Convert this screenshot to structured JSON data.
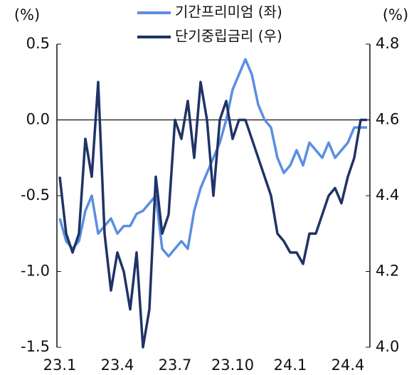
{
  "chart_data": {
    "type": "line",
    "y_unit": "(%)",
    "y2_unit": "(%)",
    "categories": [
      "23.1",
      null,
      null,
      null,
      null,
      null,
      null,
      null,
      null,
      "23.4",
      null,
      null,
      null,
      null,
      null,
      null,
      null,
      null,
      "23.7",
      null,
      null,
      null,
      null,
      null,
      null,
      null,
      null,
      "23.10",
      null,
      null,
      null,
      null,
      null,
      null,
      null,
      null,
      "24.1",
      null,
      null,
      null,
      null,
      null,
      null,
      null,
      null,
      "24.4",
      null,
      null,
      null
    ],
    "series": [
      {
        "name": "기간프리미엄 (좌)",
        "color": "#5b8ee0",
        "values": [
          -0.65,
          -0.8,
          -0.85,
          -0.8,
          -0.6,
          -0.5,
          -0.75,
          -0.7,
          -0.65,
          -0.75,
          -0.7,
          -0.7,
          -0.62,
          -0.6,
          -0.55,
          -0.5,
          -0.85,
          -0.9,
          -0.85,
          -0.8,
          -0.85,
          -0.6,
          -0.45,
          -0.35,
          -0.25,
          -0.15,
          0.0,
          0.2,
          0.3,
          0.4,
          0.3,
          0.1,
          0.0,
          -0.05,
          -0.25,
          -0.35,
          -0.3,
          -0.2,
          -0.3,
          -0.15,
          -0.2,
          -0.25,
          -0.15,
          -0.25,
          -0.2,
          -0.15,
          -0.05,
          -0.05,
          -0.05
        ]
      },
      {
        "name": "단기중립금리 (우)",
        "color": "#1f3366",
        "axis": "y2",
        "values": [
          4.45,
          4.3,
          4.25,
          4.3,
          4.55,
          4.45,
          4.7,
          4.3,
          4.15,
          4.25,
          4.2,
          4.1,
          4.25,
          4.0,
          4.1,
          4.45,
          4.3,
          4.35,
          4.6,
          4.55,
          4.65,
          4.5,
          4.7,
          4.6,
          4.4,
          4.6,
          4.65,
          4.55,
          4.6,
          4.6,
          4.55,
          4.5,
          4.45,
          4.4,
          4.3,
          4.28,
          4.25,
          4.25,
          4.22,
          4.3,
          4.3,
          4.35,
          4.4,
          4.42,
          4.38,
          4.45,
          4.5,
          4.6,
          4.6
        ]
      }
    ],
    "ylim": [
      -1.5,
      0.5
    ],
    "yticks": [
      0.5,
      {
        "value": 0,
        "label": "0.0"
      },
      -0.5,
      {
        "value": -1,
        "label": "-1.0"
      },
      -1.5
    ],
    "y2lim": [
      4.0,
      4.8
    ],
    "y2ticks": [
      4.8,
      4.6,
      4.4,
      4.2,
      {
        "value": 4,
        "label": "4.0"
      }
    ]
  }
}
